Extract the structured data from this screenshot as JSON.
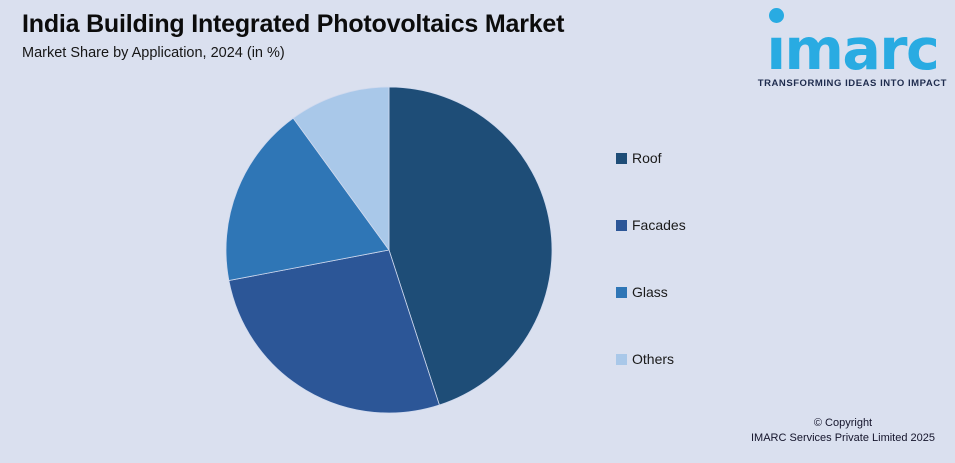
{
  "header": {
    "title": "India Building Integrated Photovoltaics Market",
    "subtitle": "Market Share by Application, 2024 (in %)"
  },
  "logo": {
    "brand": "imarc",
    "tagline": "TRANSFORMING IDEAS INTO IMPACT",
    "brand_color": "#29abe2",
    "tagline_color": "#1e2b4d"
  },
  "chart_data": {
    "type": "pie",
    "title": "India Building Integrated Photovoltaics Market",
    "subtitle": "Market Share by Application, 2024 (in %)",
    "unit": "%",
    "start_angle_deg": 0,
    "direction": "clockwise",
    "legend_position": "right",
    "data_labels": "none",
    "categories": [
      "Roof",
      "Facades",
      "Glass",
      "Others"
    ],
    "values": [
      45,
      27,
      18,
      10
    ],
    "slices": [
      {
        "label": "Roof",
        "value": 45,
        "color": "#1e4d77"
      },
      {
        "label": "Facades",
        "value": 27,
        "color": "#2c5697"
      },
      {
        "label": "Glass",
        "value": 18,
        "color": "#2f76b6"
      },
      {
        "label": "Others",
        "value": 10,
        "color": "#a9c8e9"
      }
    ]
  },
  "footer": {
    "copyright_line1": "© Copyright",
    "copyright_line2": "IMARC Services Private Limited 2025"
  },
  "colors": {
    "background": "#dae0ef",
    "title_text": "#0c0c0c",
    "legend_text": "#1a1a1a",
    "slice_separator": "#cfd9ee"
  }
}
